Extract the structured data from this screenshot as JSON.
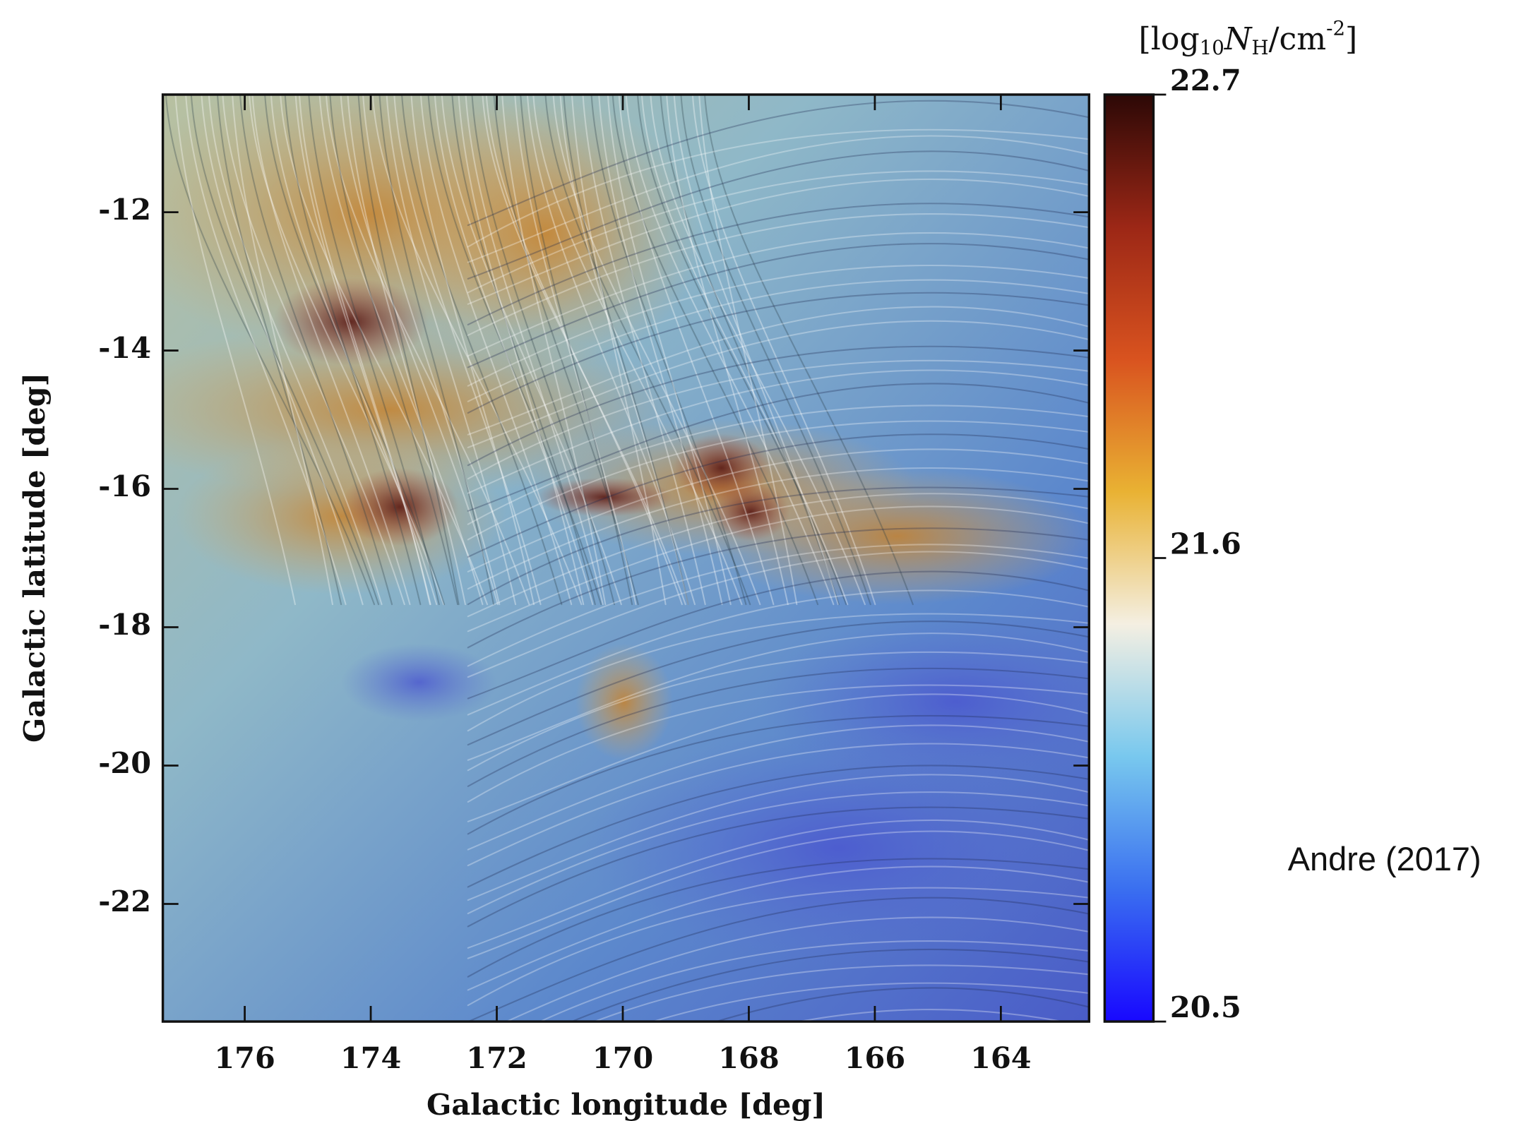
{
  "chart_data": {
    "type": "image",
    "xlabel": "Galactic longitude [deg]",
    "ylabel": "Galactic latitude [deg]",
    "xlim": [
      177.3,
      162.6
    ],
    "ylim": [
      -23.7,
      -10.3
    ],
    "xticks": [
      176,
      174,
      172,
      170,
      168,
      166,
      164
    ],
    "yticks": [
      -12,
      -14,
      -16,
      -18,
      -20,
      -22
    ],
    "colorbar": {
      "label": {
        "open": "[log",
        "base": "10",
        "var": "N",
        "var_sub": "H",
        "unit": "/cm",
        "unit_sup": "-2",
        "close": "]"
      },
      "clim": [
        20.5,
        22.7
      ],
      "ticks": [
        20.5,
        21.6,
        22.7
      ],
      "colormap": [
        "#1808ff",
        "#3a6ff0",
        "#78c8ee",
        "#f4efe2",
        "#e9b233",
        "#d9531f",
        "#9c2716",
        "#2c0806"
      ]
    },
    "annotation": "Andre (2017)"
  }
}
